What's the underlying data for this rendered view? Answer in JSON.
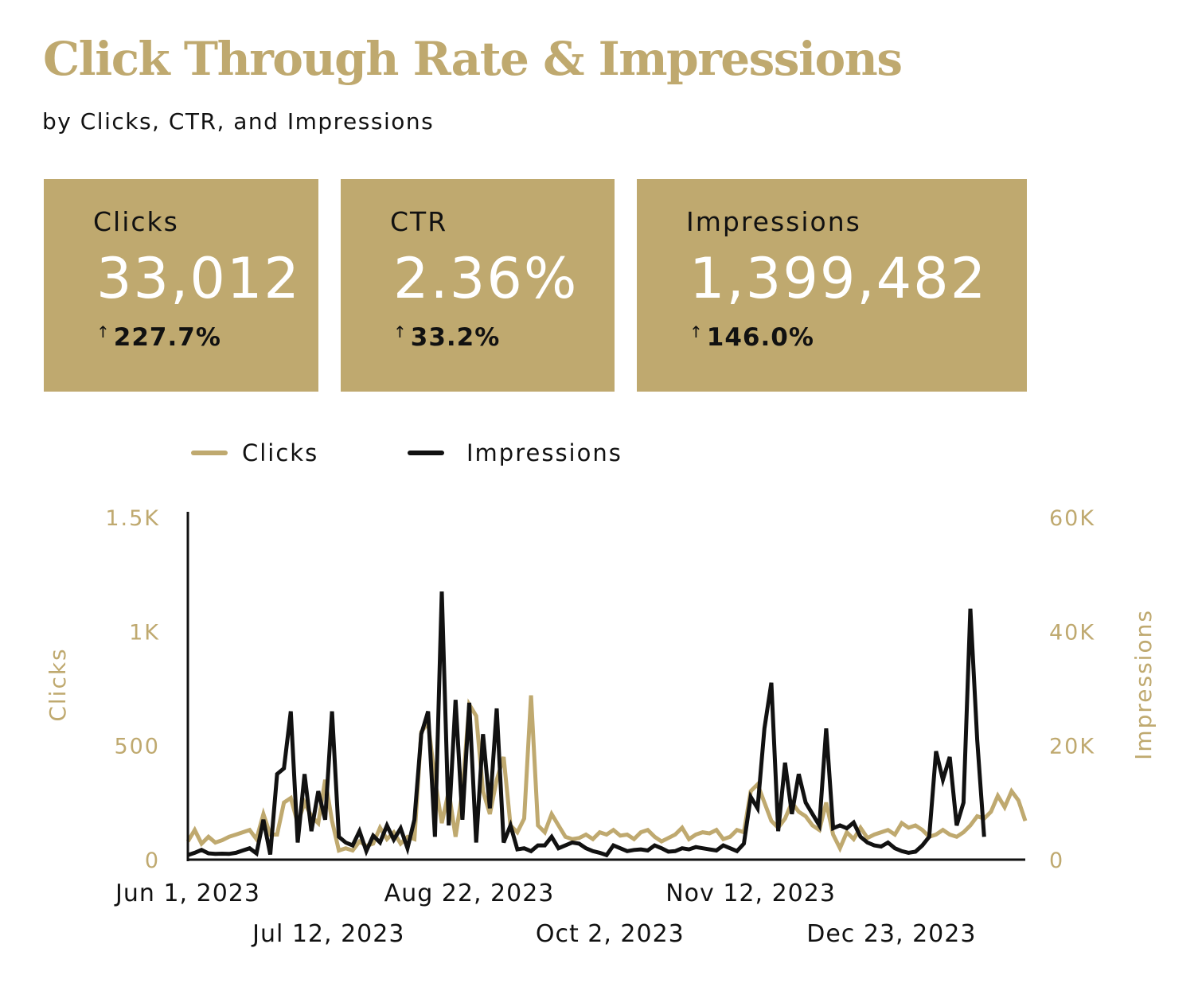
{
  "header": {
    "title": "Click Through Rate & Impressions",
    "subtitle": "by Clicks, CTR, and Impressions"
  },
  "cards": [
    {
      "label": "Clicks",
      "value": "33,012",
      "change": "227.7%",
      "arrow": "↑"
    },
    {
      "label": "CTR",
      "value": "2.36%",
      "change": "33.2%",
      "arrow": "↑"
    },
    {
      "label": "Impressions",
      "value": "1,399,482",
      "change": "146.0%",
      "arrow": "↑"
    }
  ],
  "colors": {
    "accent": "#bfa96f",
    "dark": "#111111",
    "card_value": "#ffffff"
  },
  "chart_data": {
    "type": "line",
    "title": "",
    "legend": {
      "position": "top",
      "entries": [
        "Clicks",
        "Impressions"
      ]
    },
    "y_left": {
      "label": "Clicks",
      "ticks": [
        "0",
        "500",
        "1K",
        "1.5K"
      ],
      "tick_values": [
        0,
        500,
        1000,
        1500
      ],
      "range": [
        0,
        1500
      ]
    },
    "y_right": {
      "label": "Impressions",
      "ticks": [
        "0",
        "20K",
        "40K",
        "60K"
      ],
      "tick_values": [
        0,
        20000,
        40000,
        60000
      ],
      "range": [
        0,
        60000
      ]
    },
    "x_ticks": [
      {
        "label": "Jun 1, 2023",
        "day": 0
      },
      {
        "label": "Jul 12, 2023",
        "day": 41
      },
      {
        "label": "Aug 22, 2023",
        "day": 82
      },
      {
        "label": "Oct 2, 2023",
        "day": 123
      },
      {
        "label": "Nov 12, 2023",
        "day": 164
      },
      {
        "label": "Dec 23, 2023",
        "day": 205
      }
    ],
    "x_range": [
      0,
      244
    ],
    "series": [
      {
        "name": "Clicks",
        "axis": "left",
        "color": "#bfa96f",
        "day": [
          0,
          2,
          4,
          6,
          8,
          10,
          12,
          14,
          16,
          18,
          20,
          22,
          24,
          26,
          28,
          30,
          32,
          34,
          36,
          38,
          40,
          42,
          44,
          46,
          48,
          50,
          52,
          54,
          56,
          58,
          60,
          62,
          64,
          66,
          68,
          70,
          72,
          74,
          76,
          78,
          80,
          82,
          84,
          86,
          88,
          90,
          92,
          94,
          96,
          98,
          100,
          102,
          104,
          106,
          108,
          110,
          112,
          114,
          116,
          118,
          120,
          122,
          124,
          126,
          128,
          130,
          132,
          134,
          136,
          138,
          140,
          142,
          144,
          146,
          148,
          150,
          152,
          154,
          156,
          158,
          160,
          162,
          164,
          166,
          168,
          170,
          172,
          174,
          176,
          178,
          180,
          182,
          184,
          186,
          188,
          190,
          192,
          194,
          196,
          198,
          200,
          202,
          204,
          206,
          208,
          210,
          212,
          214,
          216,
          218,
          220,
          222,
          224,
          226,
          228,
          230,
          232,
          234,
          236,
          238,
          240,
          242,
          244
        ],
        "values": [
          80,
          130,
          70,
          100,
          75,
          85,
          100,
          110,
          120,
          130,
          90,
          200,
          110,
          110,
          250,
          270,
          160,
          250,
          190,
          160,
          350,
          170,
          40,
          50,
          40,
          80,
          60,
          70,
          140,
          90,
          120,
          70,
          100,
          90,
          560,
          600,
          350,
          160,
          300,
          100,
          300,
          680,
          630,
          300,
          200,
          350,
          450,
          150,
          120,
          180,
          720,
          150,
          120,
          200,
          150,
          100,
          90,
          95,
          110,
          90,
          120,
          110,
          130,
          105,
          110,
          90,
          120,
          130,
          100,
          80,
          95,
          110,
          140,
          90,
          110,
          120,
          115,
          130,
          90,
          100,
          130,
          120,
          300,
          330,
          250,
          170,
          140,
          180,
          250,
          210,
          190,
          150,
          130,
          250,
          110,
          50,
          120,
          90,
          140,
          95,
          110,
          120,
          130,
          110,
          160,
          140,
          150,
          130,
          100,
          110,
          130,
          110,
          100,
          120,
          150,
          190,
          180,
          210,
          280,
          230,
          300,
          260,
          170
        ]
      },
      {
        "name": "Impressions",
        "axis": "right",
        "color": "#111111",
        "day": [
          0,
          2,
          4,
          6,
          8,
          10,
          12,
          14,
          16,
          18,
          20,
          22,
          24,
          26,
          28,
          30,
          32,
          34,
          36,
          38,
          40,
          42,
          44,
          46,
          48,
          50,
          52,
          54,
          56,
          58,
          60,
          62,
          64,
          66,
          68,
          70,
          72,
          74,
          76,
          78,
          80,
          82,
          84,
          86,
          88,
          90,
          92,
          94,
          96,
          98,
          100,
          102,
          104,
          106,
          108,
          110,
          112,
          114,
          116,
          118,
          120,
          122,
          124,
          126,
          128,
          130,
          132,
          134,
          136,
          138,
          140,
          142,
          144,
          146,
          148,
          150,
          152,
          154,
          156,
          158,
          160,
          162,
          164,
          166,
          168,
          170,
          172,
          174,
          176,
          178,
          180,
          182,
          184,
          186,
          188,
          190,
          192,
          194,
          196,
          198,
          200,
          202,
          204,
          206,
          208,
          210,
          212,
          214,
          216,
          218,
          220,
          222,
          224,
          226,
          228,
          230,
          232,
          234,
          236,
          238,
          240,
          242,
          244
        ],
        "values": [
          800,
          1200,
          1700,
          1100,
          1000,
          1050,
          1000,
          1200,
          1600,
          2000,
          1100,
          7000,
          900,
          15000,
          16000,
          26000,
          3000,
          15000,
          5000,
          12000,
          7000,
          26000,
          4000,
          3000,
          2500,
          5000,
          1500,
          4200,
          3000,
          6000,
          3500,
          5500,
          2000,
          7000,
          22000,
          26000,
          4000,
          47000,
          6000,
          28000,
          7000,
          27500,
          3000,
          22000,
          9000,
          26500,
          3000,
          6000,
          1800,
          2000,
          1500,
          2500,
          2500,
          4000,
          2000,
          2500,
          3000,
          2800,
          2000,
          1500,
          1200,
          800,
          2500,
          2000,
          1500,
          1700,
          1800,
          1600,
          2500,
          2000,
          1400,
          1500,
          2000,
          1800,
          2200,
          2000,
          1800,
          1600,
          2500,
          2000,
          1500,
          2800,
          11000,
          9000,
          23000,
          31000,
          5000,
          17000,
          8000,
          15000,
          10000,
          8000,
          6000,
          23000,
          5500,
          6000,
          5500,
          6500,
          4000,
          3000,
          2500,
          2300,
          3000,
          2000,
          1500,
          1200,
          1400,
          2500,
          4000,
          19000,
          14000,
          18000,
          6000,
          10000,
          44000,
          21000,
          4000
        ]
      }
    ]
  }
}
